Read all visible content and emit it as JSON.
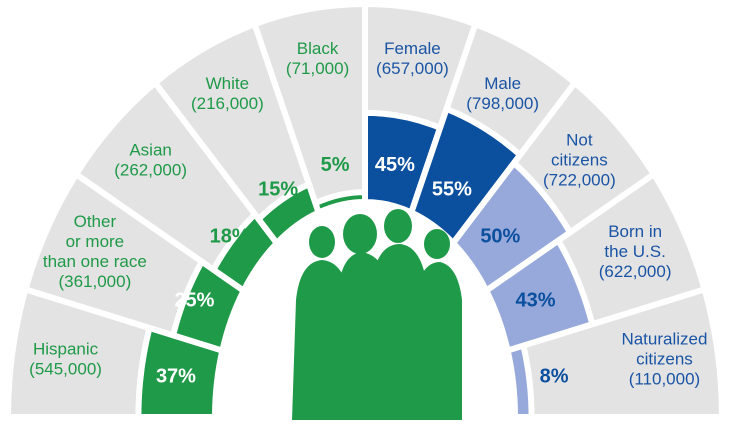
{
  "chart_data": {
    "type": "semicircle",
    "segments": [
      {
        "label": [
          "Hispanic"
        ],
        "count": "(545,000)",
        "value": 37,
        "value_label": "37%",
        "color": "#1f9a48",
        "text_color": "#1f9a48",
        "value_color": "#ffffff"
      },
      {
        "label": [
          "Other",
          "or more",
          "than one race"
        ],
        "count": "(361,000)",
        "value": 25,
        "value_label": "25%",
        "color": "#1f9a48",
        "text_color": "#1f9a48",
        "value_color": "#ffffff"
      },
      {
        "label": [
          "Asian"
        ],
        "count": "(262,000)",
        "value": 18,
        "value_label": "18%",
        "color": "#1f9a48",
        "text_color": "#1f9a48",
        "value_color": "#1f9a48"
      },
      {
        "label": [
          "White"
        ],
        "count": "(216,000)",
        "value": 15,
        "value_label": "15%",
        "color": "#1f9a48",
        "text_color": "#1f9a48",
        "value_color": "#1f9a48"
      },
      {
        "label": [
          "Black"
        ],
        "count": "(71,000)",
        "value": 5,
        "value_label": "5%",
        "color": "#1f9a48",
        "text_color": "#1f9a48",
        "value_color": "#1f9a48"
      },
      {
        "label": [
          "Female"
        ],
        "count": "(657,000)",
        "value": 45,
        "value_label": "45%",
        "color": "#0b4f9f",
        "text_color": "#1a55a5",
        "value_color": "#ffffff"
      },
      {
        "label": [
          "Male"
        ],
        "count": "(798,000)",
        "value": 55,
        "value_label": "55%",
        "color": "#0b4f9f",
        "text_color": "#1a55a5",
        "value_color": "#ffffff"
      },
      {
        "label": [
          "Not",
          "citizens"
        ],
        "count": "(722,000)",
        "value": 50,
        "value_label": "50%",
        "color": "#97a9da",
        "text_color": "#1a55a5",
        "value_color": "#0b4f9f"
      },
      {
        "label": [
          "Born in",
          "the U.S."
        ],
        "count": "(622,000)",
        "value": 43,
        "value_label": "43%",
        "color": "#97a9da",
        "text_color": "#1a55a5",
        "value_color": "#0b4f9f"
      },
      {
        "label": [
          "Naturalized",
          "citizens"
        ],
        "count": "(110,000)",
        "value": 8,
        "value_label": "8%",
        "color": "#97a9da",
        "text_color": "#1a55a5",
        "value_color": "#0b4f9f"
      }
    ]
  }
}
